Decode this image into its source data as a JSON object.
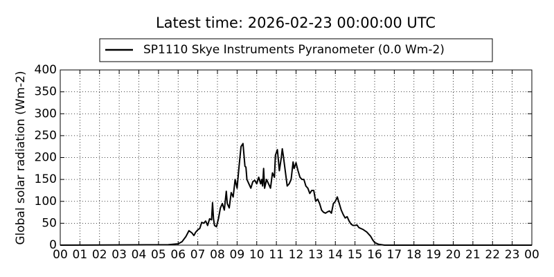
{
  "chart_data": {
    "type": "line",
    "title": "Latest time: 2026-02-23 00:00:00 UTC",
    "y_label": "Global solar radiation (Wm-2)",
    "x": [
      0,
      5.5,
      6.0,
      6.2,
      6.4,
      6.55,
      6.7,
      6.8,
      6.9,
      7.0,
      7.1,
      7.2,
      7.3,
      7.4,
      7.5,
      7.6,
      7.7,
      7.75,
      7.8,
      7.85,
      7.95,
      8.05,
      8.15,
      8.25,
      8.35,
      8.45,
      8.5,
      8.6,
      8.7,
      8.8,
      8.9,
      9.0,
      9.1,
      9.2,
      9.3,
      9.4,
      9.45,
      9.5,
      9.6,
      9.7,
      9.8,
      9.9,
      10.0,
      10.1,
      10.2,
      10.25,
      10.3,
      10.35,
      10.4,
      10.5,
      10.6,
      10.7,
      10.8,
      10.9,
      10.95,
      11.05,
      11.1,
      11.15,
      11.25,
      11.3,
      11.35,
      11.45,
      11.55,
      11.65,
      11.75,
      11.85,
      11.9,
      12.0,
      12.1,
      12.2,
      12.3,
      12.4,
      12.5,
      12.6,
      12.7,
      12.8,
      12.9,
      13.0,
      13.1,
      13.2,
      13.3,
      13.4,
      13.5,
      13.6,
      13.7,
      13.8,
      13.9,
      14.0,
      14.1,
      14.2,
      14.3,
      14.4,
      14.5,
      14.6,
      14.7,
      14.8,
      14.9,
      15.0,
      15.1,
      15.2,
      15.4,
      15.6,
      15.8,
      15.9,
      16.0,
      16.2,
      16.5,
      24
    ],
    "series": [
      {
        "name": "SP1110 Skye Instruments Pyranometer (0.0 Wm-2)",
        "color": "#000000",
        "values": [
          0,
          1,
          3,
          8,
          20,
          33,
          28,
          22,
          30,
          35,
          38,
          52,
          50,
          55,
          45,
          60,
          58,
          97,
          60,
          45,
          42,
          60,
          85,
          95,
          80,
          123,
          95,
          85,
          120,
          110,
          150,
          130,
          180,
          225,
          232,
          180,
          178,
          150,
          140,
          130,
          145,
          148,
          140,
          155,
          140,
          150,
          135,
          175,
          130,
          150,
          140,
          130,
          165,
          155,
          205,
          218,
          195,
          170,
          200,
          220,
          205,
          170,
          135,
          140,
          150,
          190,
          175,
          188,
          170,
          155,
          150,
          150,
          135,
          130,
          118,
          125,
          125,
          100,
          105,
          95,
          80,
          75,
          73,
          76,
          78,
          73,
          95,
          100,
          110,
          95,
          80,
          70,
          62,
          65,
          55,
          48,
          45,
          45,
          46,
          40,
          36,
          30,
          20,
          12,
          6,
          2,
          0,
          0
        ]
      }
    ],
    "xlim": [
      0,
      24
    ],
    "xticks": [
      {
        "value": 0,
        "label": "00"
      },
      {
        "value": 1,
        "label": "01"
      },
      {
        "value": 2,
        "label": "02"
      },
      {
        "value": 3,
        "label": "03"
      },
      {
        "value": 4,
        "label": "04"
      },
      {
        "value": 5,
        "label": "05"
      },
      {
        "value": 6,
        "label": "06"
      },
      {
        "value": 7,
        "label": "07"
      },
      {
        "value": 8,
        "label": "08"
      },
      {
        "value": 9,
        "label": "09"
      },
      10,
      11,
      12,
      13,
      14,
      15,
      16,
      17,
      18,
      19,
      20,
      21,
      22,
      23,
      {
        "value": 24,
        "label": "00"
      }
    ],
    "ylim": [
      0,
      400
    ],
    "yticks": [
      0,
      50,
      100,
      150,
      200,
      250,
      300,
      350,
      400
    ],
    "grid": true
  }
}
